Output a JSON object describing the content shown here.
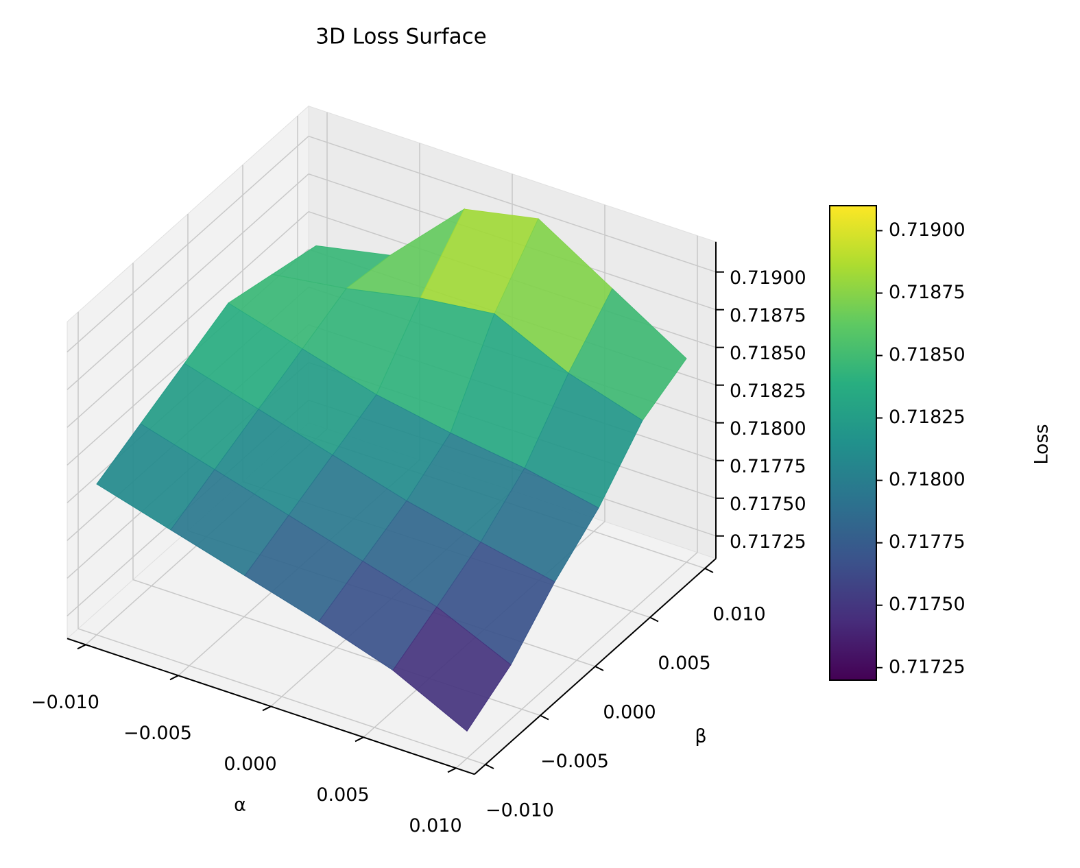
{
  "chart_data": {
    "type": "surface",
    "title": "3D Loss Surface",
    "xlabel": "α",
    "ylabel": "β",
    "zlabel": "Loss",
    "colorbar_label": "Loss",
    "colormap": "viridis",
    "grid": true,
    "x": [
      -0.01,
      -0.006,
      -0.002,
      0.002,
      0.006,
      0.01
    ],
    "y": [
      -0.01,
      -0.006,
      -0.002,
      0.002,
      0.006,
      0.01
    ],
    "z": [
      [
        0.7181,
        0.71796,
        0.71782,
        0.71768,
        0.71752,
        0.71728
      ],
      [
        0.71824,
        0.7181,
        0.71796,
        0.71782,
        0.71768,
        0.71746
      ],
      [
        0.71838,
        0.71824,
        0.7181,
        0.71796,
        0.71785,
        0.71775
      ],
      [
        0.71852,
        0.71838,
        0.71824,
        0.71815,
        0.71808,
        0.71798
      ],
      [
        0.71845,
        0.71852,
        0.71862,
        0.71868,
        0.71845,
        0.7183
      ],
      [
        0.71838,
        0.71848,
        0.71895,
        0.71905,
        0.71875,
        0.71845
      ]
    ],
    "xlim": [
      -0.011,
      0.011
    ],
    "ylim": [
      -0.011,
      0.011
    ],
    "zlim": [
      0.7171,
      0.7192
    ],
    "xticks": [
      {
        "value": -0.01,
        "label": "−0.010"
      },
      {
        "value": -0.005,
        "label": "−0.005"
      },
      {
        "value": 0,
        "label": "0.000"
      },
      {
        "value": 0.005,
        "label": "0.005"
      },
      {
        "value": 0.01,
        "label": "0.010"
      }
    ],
    "yticks": [
      {
        "value": -0.01,
        "label": "−0.010"
      },
      {
        "value": -0.005,
        "label": "−0.005"
      },
      {
        "value": 0,
        "label": "0.000"
      },
      {
        "value": 0.005,
        "label": "0.005"
      },
      {
        "value": 0.01,
        "label": "0.010"
      }
    ],
    "zticks": [
      0.71725,
      {
        "value": 0.7175,
        "label": "0.71750"
      },
      0.71775,
      {
        "value": 0.718,
        "label": "0.71800"
      },
      0.71825,
      {
        "value": 0.7185,
        "label": "0.71850"
      },
      0.71875,
      {
        "value": 0.719,
        "label": "0.71900"
      }
    ],
    "clim": [
      0.7172,
      0.7191
    ],
    "cticks": [
      0.71725,
      {
        "value": 0.7175,
        "label": "0.71750"
      },
      0.71775,
      {
        "value": 0.718,
        "label": "0.71800"
      },
      0.71825,
      {
        "value": 0.7185,
        "label": "0.71850"
      },
      0.71875,
      {
        "value": 0.719,
        "label": "0.71900"
      }
    ]
  }
}
